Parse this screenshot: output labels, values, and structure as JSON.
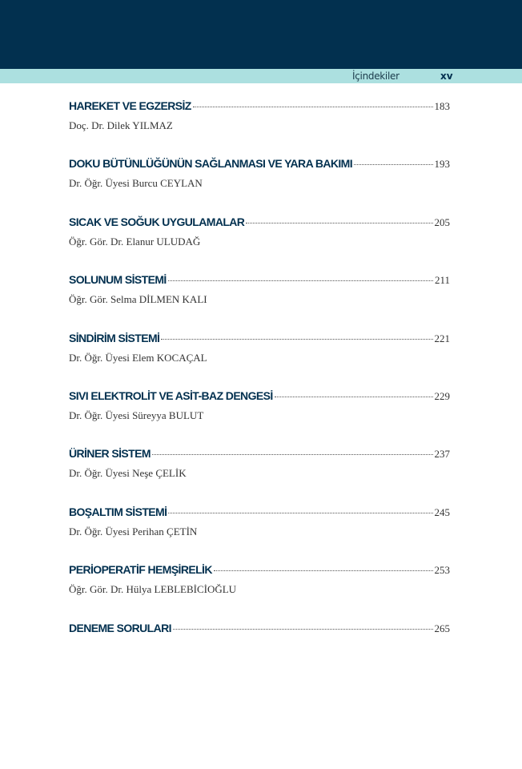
{
  "header": {
    "section": "İçindekiler",
    "page": "xv"
  },
  "entries": [
    {
      "title": "HAREKET VE EGZERSİZ",
      "page": "183",
      "author": "Doç. Dr. Dilek YILMAZ"
    },
    {
      "title": "DOKU BÜTÜNLÜĞÜNÜN SAĞLANMASI VE YARA BAKIMI",
      "page": "193",
      "author": "Dr. Öğr. Üyesi Burcu CEYLAN"
    },
    {
      "title": "SICAK VE SOĞUK UYGULAMALAR",
      "page": "205",
      "author": "Öğr. Gör. Dr. Elanur ULUDAĞ"
    },
    {
      "title": "SOLUNUM SİSTEMİ",
      "page": "211",
      "author": "Öğr. Gör. Selma DİLMEN KALI"
    },
    {
      "title": "SİNDİRİM SİSTEMİ",
      "page": "221",
      "author": "Dr. Öğr. Üyesi Elem KOCAÇAL"
    },
    {
      "title": "SIVI ELEKTROLİT VE ASİT-BAZ DENGESİ",
      "page": "229",
      "author": "Dr. Öğr. Üyesi Süreyya BULUT"
    },
    {
      "title": "ÜRİNER SİSTEM",
      "page": "237",
      "author": "Dr. Öğr. Üyesi Neşe ÇELİK"
    },
    {
      "title": "BOŞALTIM SİSTEMİ",
      "page": "245",
      "author": "Dr. Öğr. Üyesi Perihan ÇETİN"
    },
    {
      "title": "PERİOPERATİF HEMŞİRELİK",
      "page": "253",
      "author": "Öğr. Gör. Dr. Hülya LEBLEBİCİOĞLU"
    },
    {
      "title": "DENEME SORULARI",
      "page": "265",
      "author": null
    }
  ],
  "colors": {
    "dark_band": "#02304f",
    "light_band": "#ace0e0",
    "title": "#02304f"
  }
}
